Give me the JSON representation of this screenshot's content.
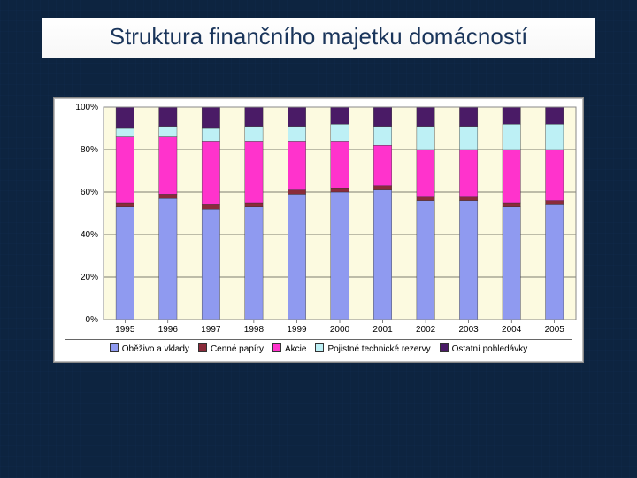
{
  "title": {
    "text": "Struktura finančního majetku domácností",
    "fontsize": 26,
    "color": "#1a355b"
  },
  "chart": {
    "type": "stacked-bar-100",
    "background_color": "#fcfae0",
    "plot_border_color": "#888888",
    "grid_color": "#000000",
    "bar_width": 0.42,
    "ylim": [
      0,
      100
    ],
    "ytick_step": 20,
    "yticks": [
      "0%",
      "20%",
      "40%",
      "60%",
      "80%",
      "100%"
    ],
    "categories": [
      "1995",
      "1996",
      "1997",
      "1998",
      "1999",
      "2000",
      "2001",
      "2002",
      "2003",
      "2004",
      "2005"
    ],
    "series": [
      {
        "name": "Oběživo a vklady",
        "color": "#8f9af0"
      },
      {
        "name": "Cenné papíry",
        "color": "#8a2b3a"
      },
      {
        "name": "Akcie",
        "color": "#ff33cc"
      },
      {
        "name": "Pojistné technické rezervy",
        "color": "#bdf0f5"
      },
      {
        "name": "Ostatní pohledávky",
        "color": "#4a1b66"
      }
    ],
    "values": [
      [
        53,
        2,
        31,
        4,
        10
      ],
      [
        57,
        2,
        27,
        5,
        9
      ],
      [
        52,
        2,
        30,
        6,
        10
      ],
      [
        53,
        2,
        29,
        7,
        9
      ],
      [
        59,
        2,
        23,
        7,
        9
      ],
      [
        60,
        2,
        22,
        8,
        8
      ],
      [
        61,
        2,
        19,
        9,
        9
      ],
      [
        56,
        2,
        22,
        11,
        9
      ],
      [
        56,
        2,
        22,
        11,
        9
      ],
      [
        53,
        2,
        25,
        12,
        8
      ],
      [
        54,
        2,
        24,
        12,
        8
      ]
    ],
    "label_fontsize": 10
  }
}
